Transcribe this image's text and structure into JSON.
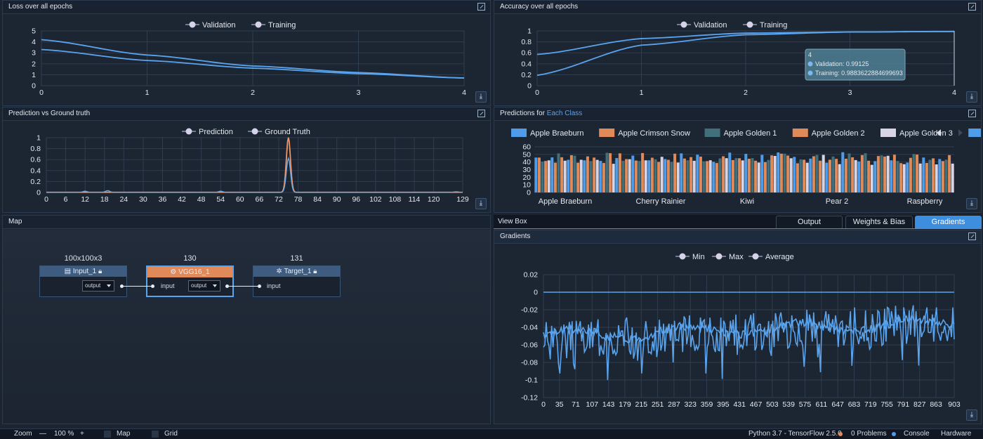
{
  "panels": {
    "loss": {
      "title": "Loss over all epochs"
    },
    "accuracy": {
      "title": "Accuracy over all epochs"
    },
    "pred": {
      "title": "Prediction vs Ground truth"
    },
    "classes": {
      "title_a": "Predictions for ",
      "title_b": "Each Class"
    },
    "map": {
      "title": "Map"
    },
    "viewbox": {
      "title": "View Box"
    },
    "gradients": {
      "title": "Gradients"
    }
  },
  "tabs": [
    "Output",
    "Weights & Bias",
    "Gradients"
  ],
  "active_tab": "Gradients",
  "map": {
    "nodes": [
      {
        "name": "Input_1",
        "dim": "100x100x3",
        "icon": "dataset-icon",
        "lock": "lock-icon"
      },
      {
        "name": "VGG16_1",
        "dim": "130",
        "icon": "layer-icon"
      },
      {
        "name": "Target_1",
        "dim": "131",
        "icon": "gear-icon",
        "lock": "lock-icon"
      }
    ],
    "select_value": "output",
    "port_input": "input"
  },
  "status": {
    "zoom_label": "Zoom",
    "zoom_minus": "—",
    "zoom_value": "100 %",
    "zoom_plus": "+",
    "map_label": "Map",
    "grid_label": "Grid",
    "runtime": "Python 3.7 - TensorFlow 2.5.0",
    "problems": "0 Problems",
    "console": "Console",
    "hardware": "Hardware"
  },
  "accent": "#5aa4ee",
  "chart_data": [
    {
      "id": "loss",
      "type": "line",
      "legend": [
        "Validation",
        "Training"
      ],
      "xticks": [
        "0",
        "1",
        "2",
        "3",
        "4"
      ],
      "yticks": [
        "0",
        "1",
        "2",
        "3",
        "4",
        "5"
      ],
      "ylim": [
        0,
        5
      ],
      "x": [
        0,
        1,
        2,
        3,
        4
      ],
      "series": [
        {
          "name": "Validation",
          "values": [
            3.3,
            2.3,
            1.6,
            1.1,
            0.7
          ]
        },
        {
          "name": "Training",
          "values": [
            4.2,
            2.8,
            1.8,
            1.2,
            0.7
          ]
        }
      ]
    },
    {
      "id": "accuracy",
      "type": "line",
      "legend": [
        "Validation",
        "Training"
      ],
      "xticks": [
        "0",
        "1",
        "2",
        "3",
        "4"
      ],
      "yticks": [
        "0",
        "0.2",
        "0.4",
        "0.6",
        "0.8",
        "1"
      ],
      "ylim": [
        0,
        1
      ],
      "x": [
        0,
        1,
        2,
        3,
        4
      ],
      "series": [
        {
          "name": "Validation",
          "values": [
            0.57,
            0.86,
            0.96,
            0.98,
            0.99125
          ]
        },
        {
          "name": "Training",
          "values": [
            0.19,
            0.74,
            0.93,
            0.98,
            0.9883622884699693
          ]
        }
      ],
      "tooltip": {
        "title": "4",
        "lines": [
          "Validation: 0.99125",
          "Training: 0.9883622884699693"
        ]
      }
    },
    {
      "id": "pred",
      "type": "line",
      "legend": [
        "Prediction",
        "Ground Truth"
      ],
      "xticks": [
        "0",
        "6",
        "12",
        "18",
        "24",
        "30",
        "36",
        "42",
        "48",
        "54",
        "60",
        "66",
        "72",
        "78",
        "84",
        "90",
        "96",
        "102",
        "108",
        "114",
        "120",
        "129"
      ],
      "yticks": [
        "0",
        "0.2",
        "0.4",
        "0.6",
        "0.8",
        "1"
      ],
      "ylim": [
        0,
        1
      ],
      "xlim": [
        0,
        129
      ],
      "series": [
        {
          "name": "Prediction",
          "peaks": [
            [
              12,
              0.02
            ],
            [
              19,
              0.03
            ],
            [
              54,
              0.02
            ],
            [
              75,
              0.62
            ],
            [
              127,
              0.01
            ]
          ]
        },
        {
          "name": "Ground Truth",
          "peaks": [
            [
              75,
              1
            ]
          ]
        }
      ]
    },
    {
      "id": "classes",
      "type": "bar",
      "legend": [
        "Apple Braeburn",
        "Apple Crimson Snow",
        "Apple Golden 1",
        "Apple Golden 2",
        "Apple Golden 3"
      ],
      "xticks": [
        "Apple Braeburn",
        "Cherry Rainier",
        "Kiwi",
        "Pear 2",
        "Raspberry"
      ],
      "yticks": [
        "0",
        "10",
        "20",
        "30",
        "40",
        "50",
        "60"
      ],
      "ylim": [
        0,
        60
      ],
      "series_colors": [
        "#4f9de8",
        "#e08a5a",
        "#41707a",
        "#e08a5a",
        "#d9d4e3"
      ],
      "groups": 130,
      "values": [
        [
          46,
          44,
          40,
          44,
          36
        ],
        [
          42,
          45,
          44,
          38,
          40
        ],
        [
          47,
          43,
          46,
          39,
          42
        ],
        [
          41,
          44,
          40,
          45,
          37
        ],
        [
          48,
          42,
          44,
          40,
          43
        ]
      ]
    },
    {
      "id": "gradients",
      "type": "line",
      "legend": [
        "Min",
        "Max",
        "Average"
      ],
      "xticks": [
        "0",
        "35",
        "71",
        "107",
        "143",
        "179",
        "215",
        "251",
        "287",
        "323",
        "359",
        "395",
        "431",
        "467",
        "503",
        "539",
        "575",
        "611",
        "647",
        "683",
        "719",
        "755",
        "791",
        "827",
        "863",
        "903"
      ],
      "yticks": [
        "0.02",
        "0",
        "-0.02",
        "-0.04",
        "-0.06",
        "-0.08",
        "-0.1",
        "-0.12"
      ],
      "ylim": [
        -0.12,
        0.02
      ],
      "xlim": [
        0,
        903
      ],
      "series": [
        {
          "name": "Max",
          "values": [
            0,
            0
          ]
        },
        {
          "name": "Min",
          "range": [
            -0.1,
            -0.015
          ]
        },
        {
          "name": "Average",
          "range": [
            -0.06,
            -0.03
          ]
        }
      ]
    }
  ]
}
